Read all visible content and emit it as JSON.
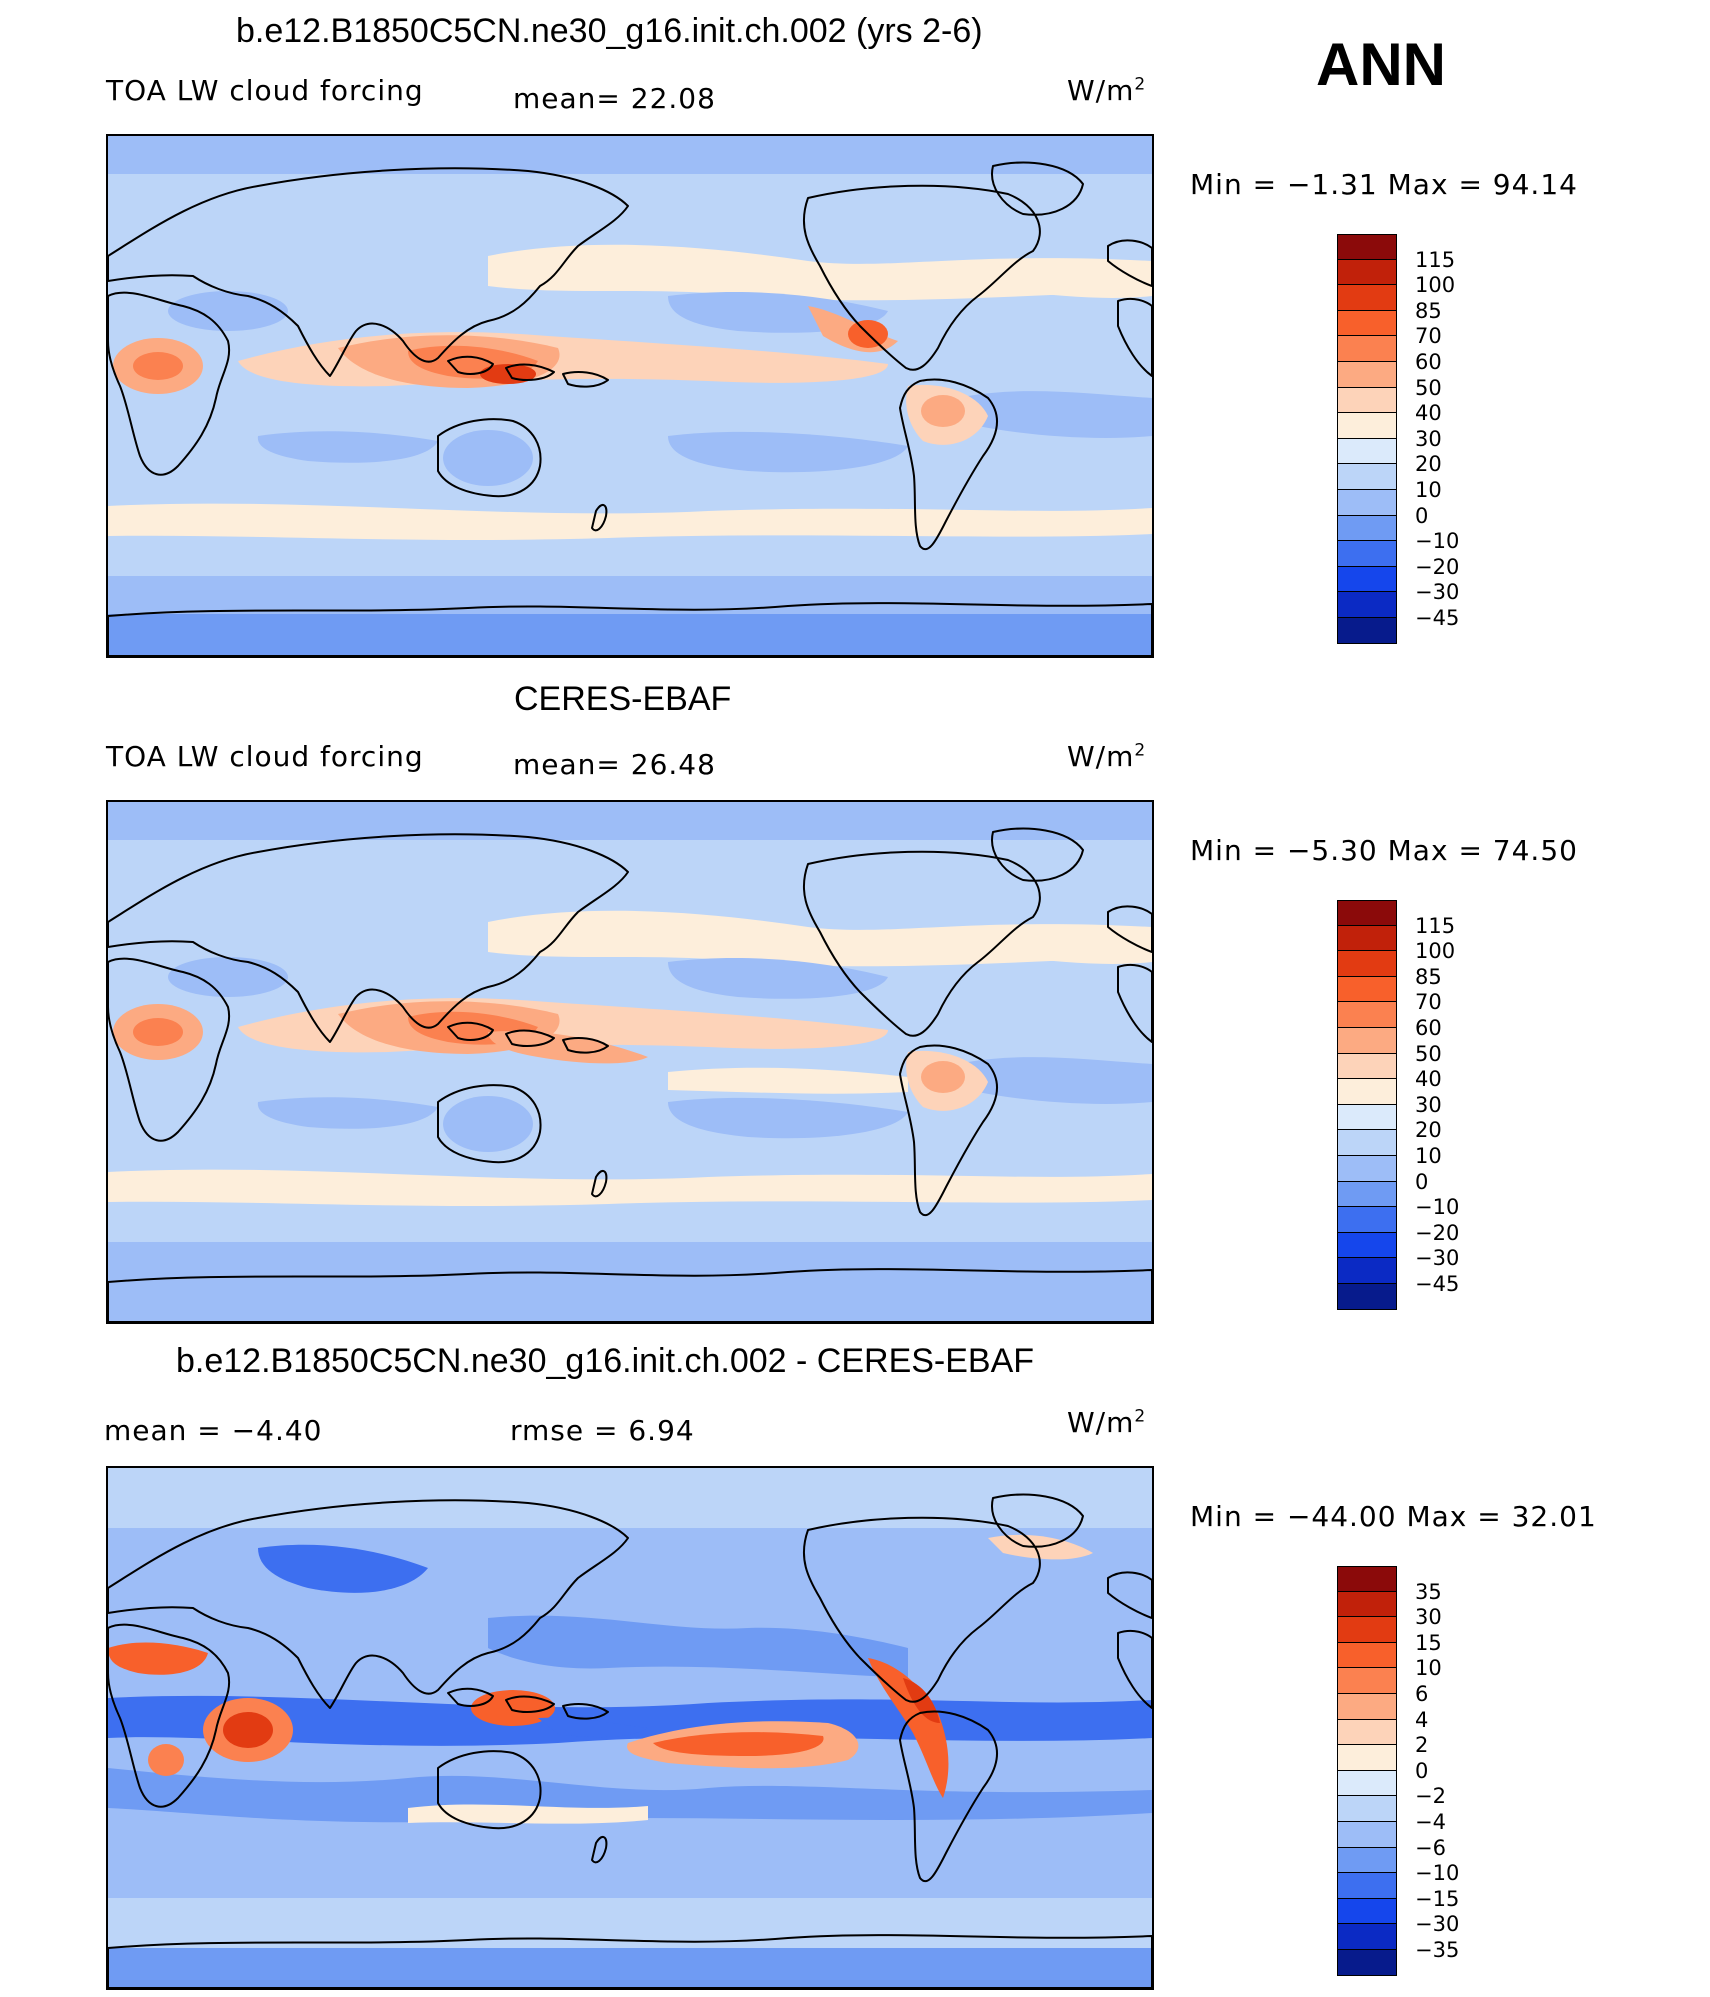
{
  "season": "ANN",
  "panels": [
    {
      "title": "b.e12.B1850C5CN.ne30_g16.init.ch.002 (yrs 2-6)",
      "left_label": "TOA LW cloud forcing",
      "center_label": "mean=   22.08",
      "units": "W/m",
      "units_sup": "2",
      "min_max": "Min =   −1.31  Max =   94.14",
      "colorbar": {
        "ticks": [
          "115",
          "100",
          "85",
          "70",
          "60",
          "50",
          "40",
          "30",
          "20",
          "10",
          "0",
          "−10",
          "−20",
          "−30",
          "−45"
        ],
        "colors": [
          "#8b0a0a",
          "#c1210a",
          "#e23b12",
          "#f8602b",
          "#fb8150",
          "#fcaa82",
          "#fdd3b9",
          "#fdeedb",
          "#dbeafb",
          "#bcd5f8",
          "#9dbdf7",
          "#6f9bf3",
          "#3d6ff0",
          "#1546ec",
          "#0b2ac4",
          "#071b8c"
        ]
      },
      "field": "model"
    },
    {
      "title": "CERES-EBAF",
      "left_label": "TOA LW cloud forcing",
      "center_label": "mean=   26.48",
      "units": "W/m",
      "units_sup": "2",
      "min_max": "Min =   −5.30  Max =   74.50",
      "colorbar": {
        "ticks": [
          "115",
          "100",
          "85",
          "70",
          "60",
          "50",
          "40",
          "30",
          "20",
          "10",
          "0",
          "−10",
          "−20",
          "−30",
          "−45"
        ],
        "colors": [
          "#8b0a0a",
          "#c1210a",
          "#e23b12",
          "#f8602b",
          "#fb8150",
          "#fcaa82",
          "#fdd3b9",
          "#fdeedb",
          "#dbeafb",
          "#bcd5f8",
          "#9dbdf7",
          "#6f9bf3",
          "#3d6ff0",
          "#1546ec",
          "#0b2ac4",
          "#071b8c"
        ]
      },
      "field": "obs"
    },
    {
      "title": "b.e12.B1850C5CN.ne30_g16.init.ch.002 - CERES-EBAF",
      "left_label": "mean =   −4.40",
      "center_label": "rmse =    6.94",
      "units": "W/m",
      "units_sup": "2",
      "min_max": "Min = −44.00  Max =   32.01",
      "colorbar": {
        "ticks": [
          "35",
          "30",
          "15",
          "10",
          "6",
          "4",
          "2",
          "0",
          "−2",
          "−4",
          "−6",
          "−10",
          "−15",
          "−30",
          "−35"
        ],
        "colors": [
          "#8b0a0a",
          "#c1210a",
          "#e23b12",
          "#f8602b",
          "#fb8150",
          "#fcaa82",
          "#fdd3b9",
          "#fdeedb",
          "#dbeafb",
          "#bcd5f8",
          "#9dbdf7",
          "#6f9bf3",
          "#3d6ff0",
          "#1546ec",
          "#0b2ac4",
          "#071b8c"
        ]
      },
      "field": "diff"
    }
  ]
}
